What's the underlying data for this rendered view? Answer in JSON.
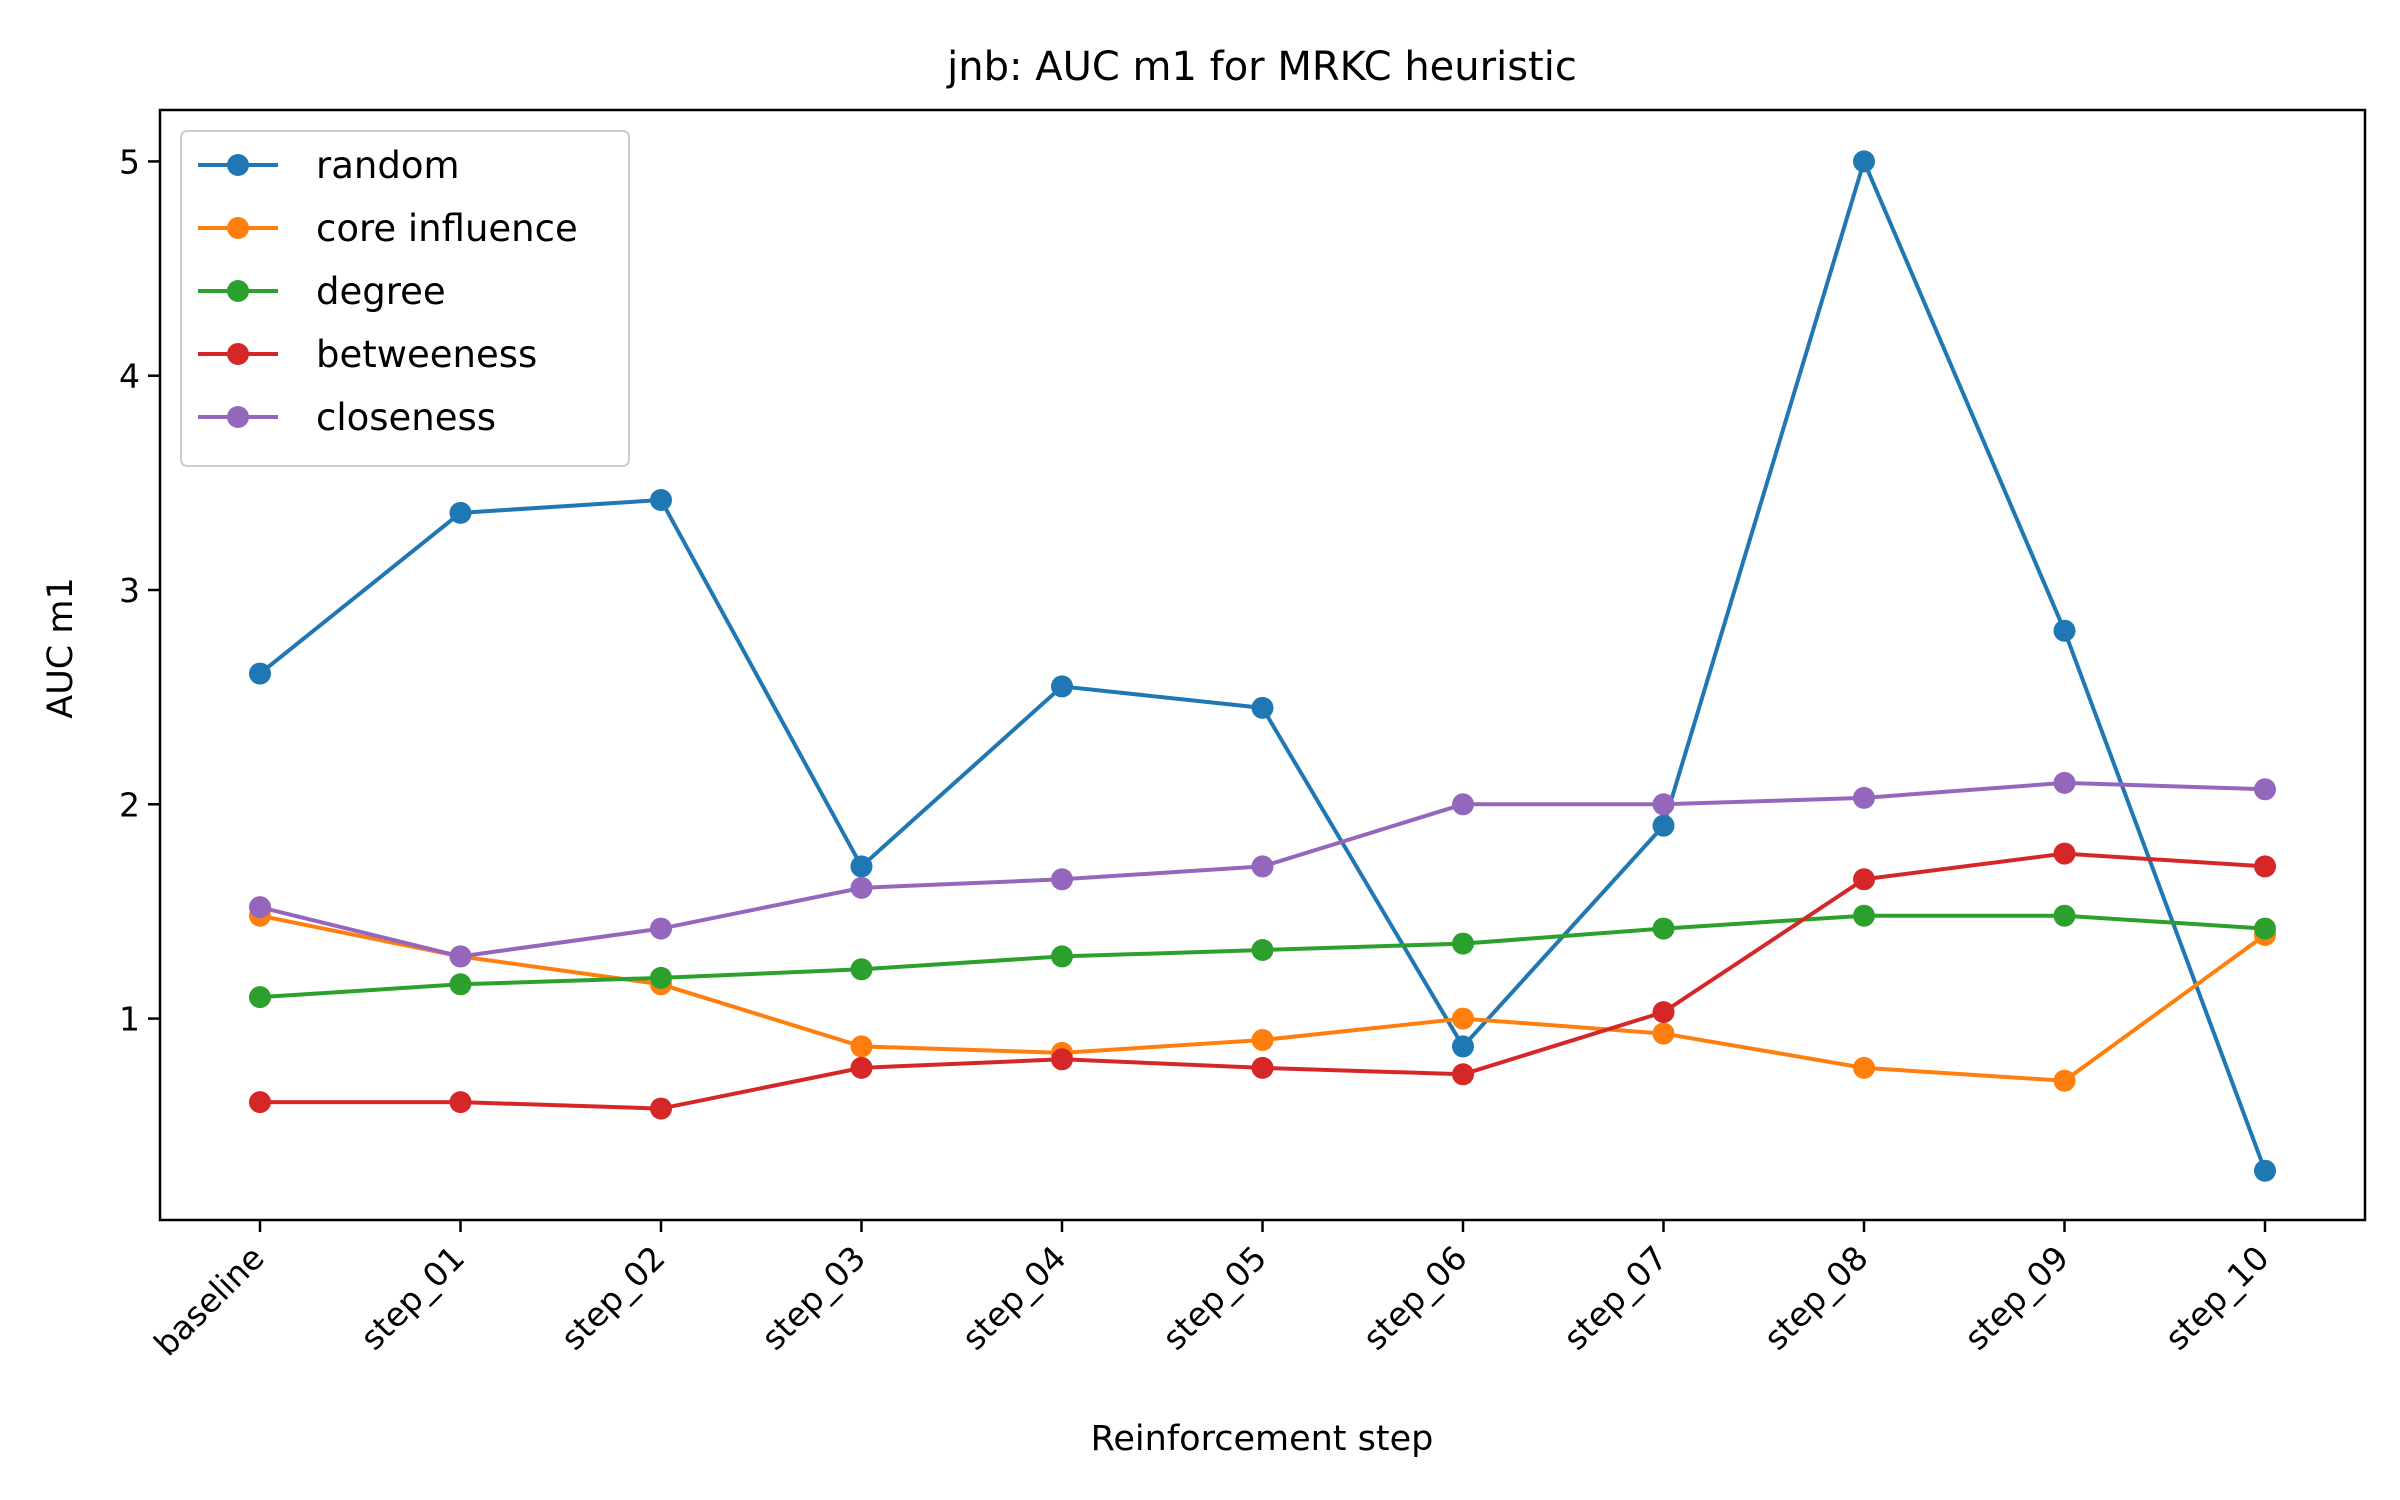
{
  "chart_data": {
    "type": "line",
    "title": "jnb: AUC m1 for MRKC heuristic",
    "xlabel": "Reinforcement step",
    "ylabel": "AUC m1",
    "categories": [
      "baseline",
      "step_01",
      "step_02",
      "step_03",
      "step_04",
      "step_05",
      "step_06",
      "step_07",
      "step_08",
      "step_09",
      "step_10"
    ],
    "ylim": [
      0.06,
      5.24
    ],
    "yticks": [
      1,
      2,
      3,
      4,
      5
    ],
    "grid": false,
    "legend_position": "top-left",
    "series": [
      {
        "name": "random",
        "color": "#1f77b4",
        "values": [
          2.61,
          3.36,
          3.42,
          1.71,
          2.55,
          2.45,
          0.87,
          1.9,
          5.0,
          2.81,
          0.29
        ]
      },
      {
        "name": "core influence",
        "color": "#ff7f0e",
        "values": [
          1.48,
          1.29,
          1.16,
          0.87,
          0.84,
          0.9,
          1.0,
          0.93,
          0.77,
          0.71,
          1.39
        ]
      },
      {
        "name": "degree",
        "color": "#2ca02c",
        "values": [
          1.1,
          1.16,
          1.19,
          1.23,
          1.29,
          1.32,
          1.35,
          1.42,
          1.48,
          1.48,
          1.42
        ]
      },
      {
        "name": "betweeness",
        "color": "#d62728",
        "values": [
          0.61,
          0.61,
          0.58,
          0.77,
          0.81,
          0.77,
          0.74,
          1.03,
          1.65,
          1.77,
          1.71
        ]
      },
      {
        "name": "closeness",
        "color": "#9467bd",
        "values": [
          1.52,
          1.29,
          1.42,
          1.61,
          1.65,
          1.71,
          2.0,
          2.0,
          2.03,
          2.1,
          2.07
        ]
      }
    ]
  }
}
